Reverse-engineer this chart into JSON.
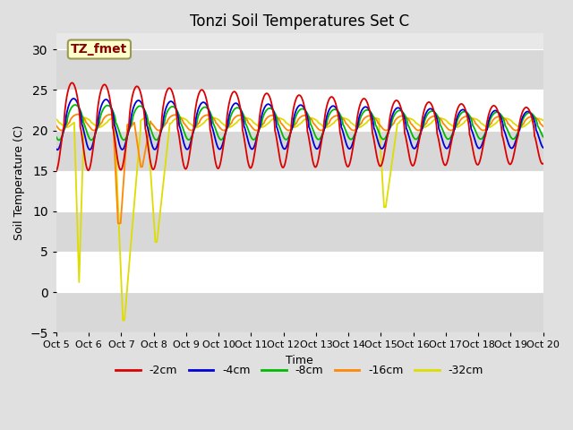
{
  "title": "Tonzi Soil Temperatures Set C",
  "xlabel": "Time",
  "ylabel": "Soil Temperature (C)",
  "ylim": [
    -5,
    32
  ],
  "xlim": [
    0,
    15
  ],
  "yticks": [
    -5,
    0,
    5,
    10,
    15,
    20,
    25,
    30
  ],
  "xtick_labels": [
    "Oct 5",
    "Oct 6",
    "Oct 7",
    "Oct 8",
    "Oct 9",
    "Oct 10",
    "Oct 11",
    "Oct 12",
    "Oct 13",
    "Oct 14",
    "Oct 15",
    "Oct 16",
    "Oct 17",
    "Oct 18",
    "Oct 19",
    "Oct 20"
  ],
  "series_colors": [
    "#dd0000",
    "#0000dd",
    "#00bb00",
    "#ff8800",
    "#dddd00"
  ],
  "series_labels": [
    "-2cm",
    "-4cm",
    "-8cm",
    "-16cm",
    "-32cm"
  ],
  "annotation_text": "TZ_fmet",
  "annotation_color": "#880000",
  "annotation_bg": "#ffffcc",
  "title_fontsize": 12,
  "axis_fontsize": 9,
  "legend_fontsize": 9,
  "tick_fontsize": 8
}
